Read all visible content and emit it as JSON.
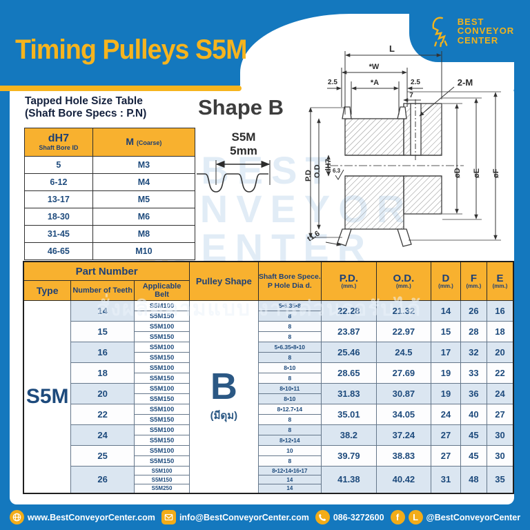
{
  "header": {
    "title": "Timing Pulleys S5M",
    "logo_lines": [
      "BEST",
      "CONVEYOR",
      "CENTER"
    ]
  },
  "watermark": {
    "lines": [
      "BEST",
      "CONVEYOR",
      "CENTER"
    ],
    "thai_line": "สั่งผลิตตามแบบ งานด่วนรอรับได้"
  },
  "tapped_table": {
    "title_line1": "Tapped Hole Size Table",
    "title_line2": "(Shaft Bore Specs : P.N)",
    "col1_main": "dH7",
    "col1_sub": "Shaft Bore ID",
    "col2_main": "M",
    "col2_sub": "(Coarse)",
    "rows": [
      [
        "5",
        "M3"
      ],
      [
        "6-12",
        "M4"
      ],
      [
        "13-17",
        "M5"
      ],
      [
        "18-30",
        "M6"
      ],
      [
        "31-45",
        "M8"
      ],
      [
        "46-65",
        "M10"
      ]
    ]
  },
  "shape": {
    "label": "Shape B",
    "profile_name": "S5M",
    "profile_pitch": "5mm"
  },
  "drawing": {
    "labels": {
      "L": "L",
      "W": "*W",
      "A": "*A",
      "left25": "2.5",
      "right25": "2.5",
      "seven": "7",
      "two_m": "2-M",
      "pd": "P.D",
      "od": "O.D",
      "dh7": "dH7",
      "finish": "6.3",
      "phiD": "øD",
      "phiE": "øE",
      "phiF": "øF",
      "t": "t1.6"
    }
  },
  "main_table": {
    "header": {
      "part_number": "Part Number",
      "type": "Type",
      "teeth": "Number of Teeth",
      "belt": "Applicable Belt",
      "shape": "Pulley Shape",
      "bore_line1": "Shaft Bore Spece.",
      "bore_line2": "P Hole Dia d.",
      "pd": "P.D.",
      "od": "O.D.",
      "d": "D",
      "f": "F",
      "e": "E",
      "mm": "(mm.)"
    },
    "type_label": "S5M",
    "shape_letter": "B",
    "shape_note": "(มีดุม)",
    "rows": [
      {
        "teeth": "14",
        "belts": [
          "S5M100",
          "S5M150"
        ],
        "bores": [
          "5•6.35•8",
          "8"
        ],
        "pd": "22.28",
        "od": "21.32",
        "d": "14",
        "f": "26",
        "e": "16"
      },
      {
        "teeth": "15",
        "belts": [
          "S5M100",
          "S5M150"
        ],
        "bores": [
          "8",
          "8"
        ],
        "pd": "23.87",
        "od": "22.97",
        "d": "15",
        "f": "28",
        "e": "18"
      },
      {
        "teeth": "16",
        "belts": [
          "S5M100",
          "S5M150"
        ],
        "bores": [
          "5•6.35•8•10",
          "8"
        ],
        "pd": "25.46",
        "od": "24.5",
        "d": "17",
        "f": "32",
        "e": "20"
      },
      {
        "teeth": "18",
        "belts": [
          "S5M100",
          "S5M150"
        ],
        "bores": [
          "8•10",
          "8"
        ],
        "pd": "28.65",
        "od": "27.69",
        "d": "19",
        "f": "33",
        "e": "22"
      },
      {
        "teeth": "20",
        "belts": [
          "S5M100",
          "S5M150"
        ],
        "bores": [
          "8•10•11",
          "8•10"
        ],
        "pd": "31.83",
        "od": "30.87",
        "d": "19",
        "f": "36",
        "e": "24"
      },
      {
        "teeth": "22",
        "belts": [
          "S5M100",
          "S5M150"
        ],
        "bores": [
          "8•12.7•14",
          "8"
        ],
        "pd": "35.01",
        "od": "34.05",
        "d": "24",
        "f": "40",
        "e": "27"
      },
      {
        "teeth": "24",
        "belts": [
          "S5M100",
          "S5M150"
        ],
        "bores": [
          "8",
          "8•12•14"
        ],
        "pd": "38.2",
        "od": "37.24",
        "d": "27",
        "f": "45",
        "e": "30"
      },
      {
        "teeth": "25",
        "belts": [
          "S5M100",
          "S5M150"
        ],
        "bores": [
          "10",
          "8"
        ],
        "pd": "39.79",
        "od": "38.83",
        "d": "27",
        "f": "45",
        "e": "30"
      },
      {
        "teeth": "26",
        "belts": [
          "S5M100",
          "S5M150",
          "S5M250"
        ],
        "bores": [
          "8•12•14•16•17",
          "14",
          "14"
        ],
        "pd": "41.38",
        "od": "40.42",
        "d": "31",
        "f": "48",
        "e": "35"
      }
    ]
  },
  "footer": {
    "website": "www.BestConveyorCenter.com",
    "email": "info@BestConveyorCenter.com",
    "phone": "086-3272600",
    "social": "@BestConveyorCenter",
    "fb_glyph": "f",
    "line_glyph": "L"
  },
  "colors": {
    "blue": "#1478be",
    "gold": "#f6b41e",
    "header_yellow": "#f8b12f",
    "navy": "#1d4a7c",
    "row_shade": "#dbe6f1",
    "watermark": "#cfe1f1"
  }
}
